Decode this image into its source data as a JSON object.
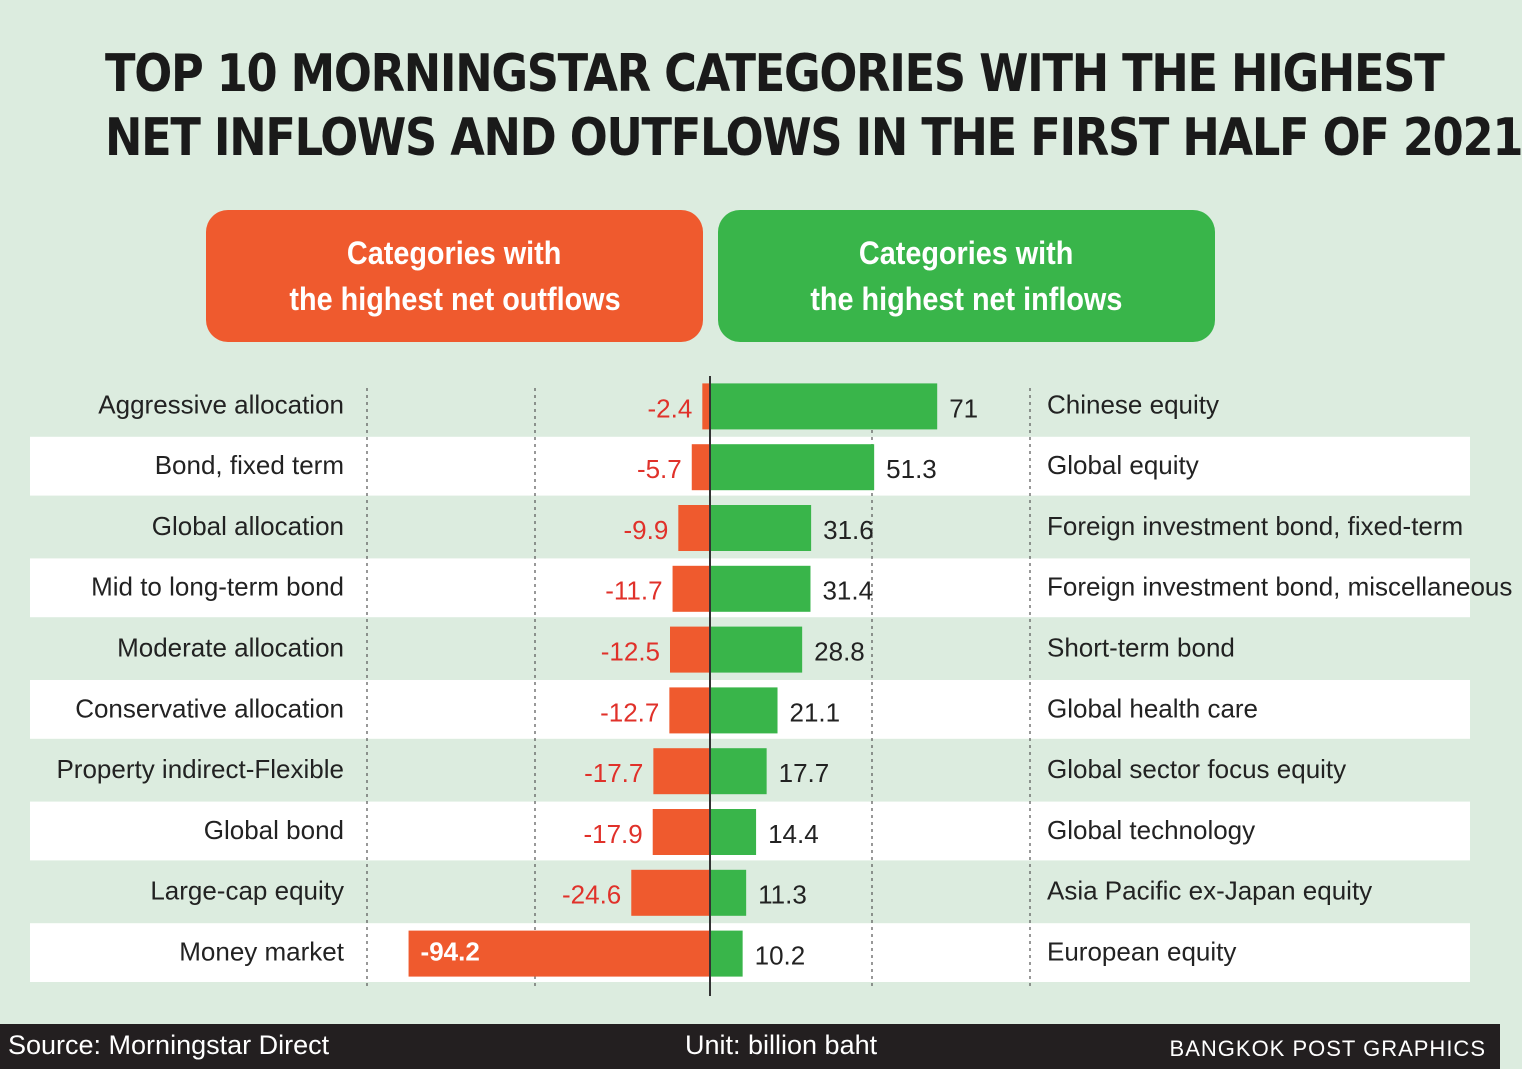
{
  "title_lines": [
    "TOP 10 MORNINGSTAR CATEGORIES WITH THE HIGHEST",
    "NET INFLOWS AND OUTFLOWS IN THE FIRST HALF OF 2021"
  ],
  "outflow_header": [
    "Categories with",
    "the highest net outflows"
  ],
  "inflow_header": [
    "Categories with",
    "the highest net inflows"
  ],
  "footer": {
    "source": "Source: Morningstar Direct",
    "unit": "Unit: billion baht",
    "credit": "BANGKOK POST GRAPHICS"
  },
  "colors": {
    "outflow": "#ef5a2e",
    "inflow": "#39b54a",
    "outflow_label": "#e0312a",
    "background": "#dcecdf",
    "stripe": "#ffffff"
  },
  "chart_data": {
    "type": "bar",
    "orientation": "horizontal-diverging",
    "unit": "billion baht",
    "outflows": {
      "categories": [
        "Aggressive allocation",
        "Bond, fixed term",
        "Global allocation",
        "Mid to long-term bond",
        "Moderate allocation",
        "Conservative allocation",
        "Property indirect-Flexible",
        "Global bond",
        "Large-cap equity",
        "Money market"
      ],
      "values": [
        -2.4,
        -5.7,
        -9.9,
        -11.7,
        -12.5,
        -12.7,
        -17.7,
        -17.9,
        -24.6,
        -94.2
      ],
      "labels": [
        "-2.4",
        "-5.7",
        "-9.9",
        "-11.7",
        "-12.5",
        "-12.7",
        "-17.7",
        "-17.9",
        "-24.6",
        "-94.2"
      ]
    },
    "inflows": {
      "categories": [
        "Chinese equity",
        "Global equity",
        "Foreign investment bond, fixed-term",
        "Foreign investment bond, miscellaneous",
        "Short-term bond",
        "Global health care",
        "Global sector focus equity",
        "Global technology",
        "Asia Pacific ex-Japan equity",
        "European equity"
      ],
      "values": [
        71,
        51.3,
        31.6,
        31.4,
        28.8,
        21.1,
        17.7,
        14.4,
        11.3,
        10.2
      ],
      "labels": [
        "71",
        "51.3",
        "31.6",
        "31.4",
        "28.8",
        "21.1",
        "17.7",
        "14.4",
        "11.3",
        "10.2"
      ]
    },
    "grid": "vertical dotted"
  }
}
